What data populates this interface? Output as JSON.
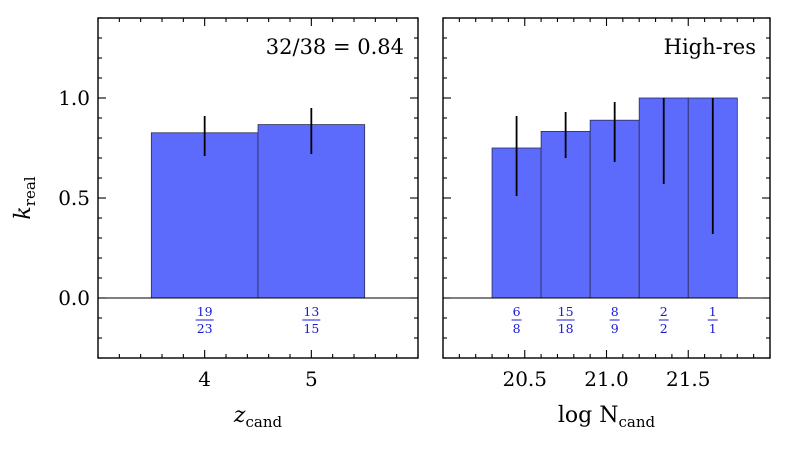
{
  "chart_data": [
    {
      "type": "bar",
      "xlabel_main": "z",
      "xlabel_sub": "cand",
      "ylabel_main": "k",
      "ylabel_sub": "real",
      "annotation": "32/38 = 0.84",
      "xlim": [
        3.0,
        6.0
      ],
      "ylim": [
        -0.3,
        1.4
      ],
      "xticks": [
        4,
        5
      ],
      "xtick_labels": [
        "4",
        "5"
      ],
      "yticks": [
        0.0,
        0.5,
        1.0
      ],
      "ytick_labels": [
        "0.0",
        "0.5",
        "1.0"
      ],
      "bins": [
        {
          "x0": 3.5,
          "x1": 4.5,
          "center": 4,
          "value": 0.826,
          "err_low": 0.71,
          "err_high": 0.91,
          "num": "19",
          "den": "23"
        },
        {
          "x0": 4.5,
          "x1": 5.5,
          "center": 5,
          "value": 0.867,
          "err_low": 0.72,
          "err_high": 0.95,
          "num": "13",
          "den": "15"
        }
      ]
    },
    {
      "type": "bar",
      "xlabel_main": "log N",
      "xlabel_sub": "cand",
      "annotation": "High-res",
      "xlim": [
        20.0,
        22.0
      ],
      "ylim": [
        -0.3,
        1.4
      ],
      "xticks": [
        20.5,
        21.0,
        21.5
      ],
      "xtick_labels": [
        "20.5",
        "21.0",
        "21.5"
      ],
      "yticks": [
        0.0,
        0.5,
        1.0
      ],
      "bins": [
        {
          "x0": 20.3,
          "x1": 20.6,
          "center": 20.45,
          "value": 0.75,
          "err_low": 0.51,
          "err_high": 0.91,
          "num": "6",
          "den": "8"
        },
        {
          "x0": 20.6,
          "x1": 20.9,
          "center": 20.75,
          "value": 0.833,
          "err_low": 0.7,
          "err_high": 0.93,
          "num": "15",
          "den": "18"
        },
        {
          "x0": 20.9,
          "x1": 21.2,
          "center": 21.05,
          "value": 0.889,
          "err_low": 0.68,
          "err_high": 0.98,
          "num": "8",
          "den": "9"
        },
        {
          "x0": 21.2,
          "x1": 21.5,
          "center": 21.35,
          "value": 1.0,
          "err_low": 0.57,
          "err_high": 1.0,
          "num": "2",
          "den": "2"
        },
        {
          "x0": 21.5,
          "x1": 21.8,
          "center": 21.65,
          "value": 1.0,
          "err_low": 0.32,
          "err_high": 1.0,
          "num": "1",
          "den": "1"
        }
      ]
    }
  ]
}
